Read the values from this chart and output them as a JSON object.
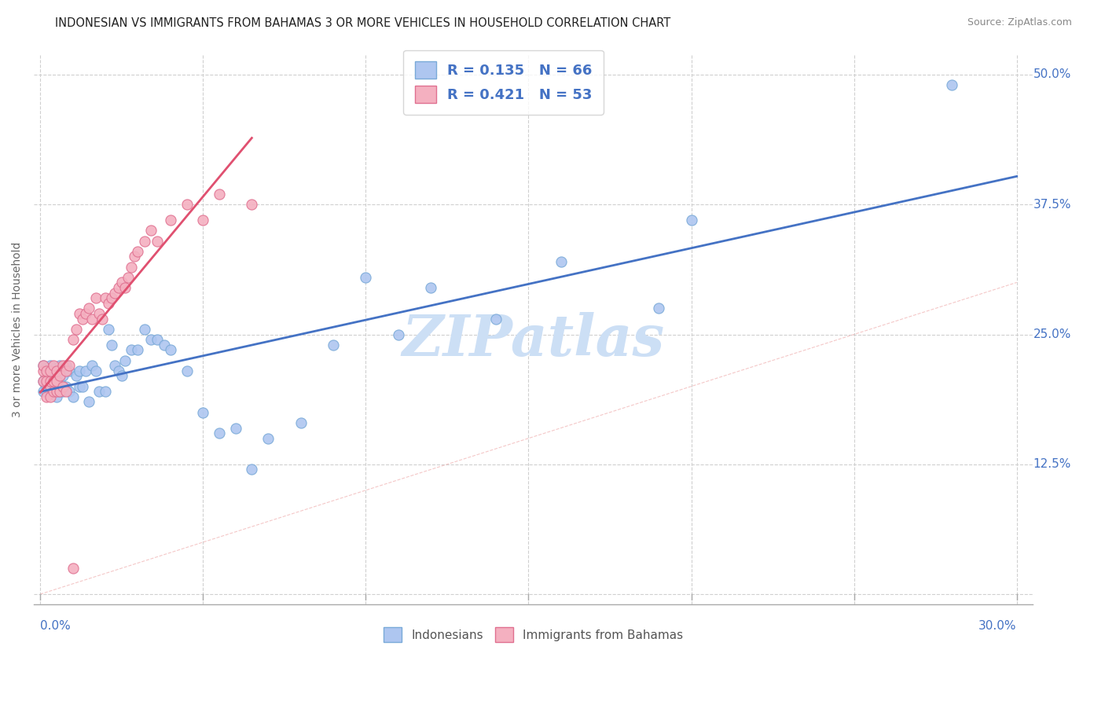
{
  "title": "INDONESIAN VS IMMIGRANTS FROM BAHAMAS 3 OR MORE VEHICLES IN HOUSEHOLD CORRELATION CHART",
  "source": "Source: ZipAtlas.com",
  "xlabel_vals": [
    0.0,
    0.05,
    0.1,
    0.15,
    0.2,
    0.25,
    0.3
  ],
  "ylabel_vals": [
    0.0,
    0.125,
    0.25,
    0.375,
    0.5
  ],
  "xlim": [
    -0.002,
    0.305
  ],
  "ylim": [
    -0.01,
    0.52
  ],
  "legend_label1": "Indonesians",
  "legend_label2": "Immigrants from Bahamas",
  "ylabel": "3 or more Vehicles in Household",
  "blue_scatter_x": [
    0.001,
    0.001,
    0.001,
    0.002,
    0.002,
    0.002,
    0.002,
    0.003,
    0.003,
    0.003,
    0.003,
    0.004,
    0.004,
    0.004,
    0.005,
    0.005,
    0.005,
    0.006,
    0.006,
    0.006,
    0.007,
    0.007,
    0.008,
    0.008,
    0.009,
    0.009,
    0.01,
    0.011,
    0.012,
    0.012,
    0.013,
    0.014,
    0.015,
    0.016,
    0.017,
    0.018,
    0.02,
    0.021,
    0.022,
    0.023,
    0.024,
    0.025,
    0.026,
    0.028,
    0.03,
    0.032,
    0.034,
    0.036,
    0.038,
    0.04,
    0.045,
    0.05,
    0.055,
    0.06,
    0.065,
    0.07,
    0.08,
    0.09,
    0.1,
    0.11,
    0.12,
    0.14,
    0.16,
    0.19,
    0.2,
    0.28
  ],
  "blue_scatter_y": [
    0.205,
    0.22,
    0.195,
    0.2,
    0.195,
    0.205,
    0.215,
    0.195,
    0.2,
    0.21,
    0.22,
    0.195,
    0.2,
    0.21,
    0.19,
    0.205,
    0.215,
    0.195,
    0.205,
    0.22,
    0.195,
    0.21,
    0.2,
    0.22,
    0.195,
    0.215,
    0.19,
    0.21,
    0.2,
    0.215,
    0.2,
    0.215,
    0.185,
    0.22,
    0.215,
    0.195,
    0.195,
    0.255,
    0.24,
    0.22,
    0.215,
    0.21,
    0.225,
    0.235,
    0.235,
    0.255,
    0.245,
    0.245,
    0.24,
    0.235,
    0.215,
    0.175,
    0.155,
    0.16,
    0.12,
    0.15,
    0.165,
    0.24,
    0.305,
    0.25,
    0.295,
    0.265,
    0.32,
    0.275,
    0.36,
    0.49
  ],
  "pink_scatter_x": [
    0.001,
    0.001,
    0.001,
    0.002,
    0.002,
    0.002,
    0.003,
    0.003,
    0.003,
    0.003,
    0.004,
    0.004,
    0.004,
    0.005,
    0.005,
    0.005,
    0.006,
    0.006,
    0.007,
    0.007,
    0.008,
    0.008,
    0.009,
    0.01,
    0.011,
    0.012,
    0.013,
    0.014,
    0.015,
    0.016,
    0.017,
    0.018,
    0.019,
    0.02,
    0.021,
    0.022,
    0.023,
    0.024,
    0.025,
    0.026,
    0.027,
    0.028,
    0.029,
    0.03,
    0.032,
    0.034,
    0.036,
    0.04,
    0.045,
    0.05,
    0.055,
    0.065,
    0.01
  ],
  "pink_scatter_y": [
    0.215,
    0.22,
    0.205,
    0.19,
    0.205,
    0.215,
    0.19,
    0.2,
    0.205,
    0.215,
    0.195,
    0.205,
    0.22,
    0.195,
    0.205,
    0.215,
    0.195,
    0.21,
    0.2,
    0.22,
    0.195,
    0.215,
    0.22,
    0.245,
    0.255,
    0.27,
    0.265,
    0.27,
    0.275,
    0.265,
    0.285,
    0.27,
    0.265,
    0.285,
    0.28,
    0.285,
    0.29,
    0.295,
    0.3,
    0.295,
    0.305,
    0.315,
    0.325,
    0.33,
    0.34,
    0.35,
    0.34,
    0.36,
    0.375,
    0.36,
    0.385,
    0.375,
    0.025
  ],
  "blue_line_color": "#4472c4",
  "pink_line_color": "#e05070",
  "diagonal_color": "#cccccc",
  "title_fontsize": 11,
  "source_fontsize": 9,
  "tick_color": "#4472c4",
  "grid_color": "#d0d0d0",
  "background_color": "#ffffff",
  "watermark_color": "#ccdff5"
}
